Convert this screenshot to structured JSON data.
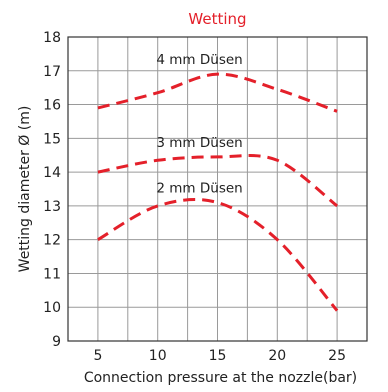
{
  "chart_data": {
    "type": "line",
    "title": "Wetting",
    "xlabel": "Connection pressure at the nozzle(bar)",
    "ylabel": "Wetting diameter Ø (m)",
    "xlim": [
      2.5,
      27.5
    ],
    "ylim": [
      9,
      18
    ],
    "x_ticks": [
      5,
      10,
      15,
      20,
      25
    ],
    "y_ticks": [
      9,
      10,
      11,
      12,
      13,
      14,
      15,
      16,
      17,
      18
    ],
    "grid": true,
    "series_color": "#e4202a",
    "series": [
      {
        "name": "4 mm Düsen",
        "x": [
          5,
          10,
          15,
          20,
          25
        ],
        "y": [
          15.9,
          16.35,
          16.9,
          16.45,
          15.8
        ]
      },
      {
        "name": "3 mm Düsen",
        "x": [
          5,
          10,
          15,
          20,
          25
        ],
        "y": [
          14.0,
          14.35,
          14.45,
          14.35,
          13.0
        ]
      },
      {
        "name": "2 mm Düsen",
        "x": [
          5,
          10,
          15,
          20,
          25
        ],
        "y": [
          12.0,
          13.0,
          13.1,
          12.0,
          9.9
        ]
      }
    ]
  }
}
